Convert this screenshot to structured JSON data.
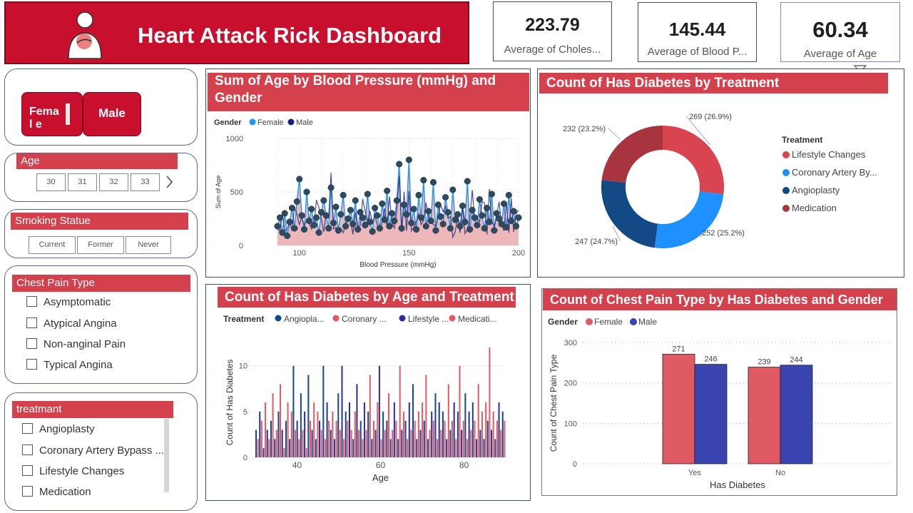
{
  "header": {
    "title": "Heart Attack Rick Dashboard",
    "logo_icon": "heart-attack-person-icon"
  },
  "kpis": [
    {
      "value": "223.79",
      "label": "Average of Choles..."
    },
    {
      "value": "145.44",
      "label": "Average of Blood P..."
    },
    {
      "value": "60.34",
      "label": "Average of Age"
    }
  ],
  "gender_slicer": {
    "options": [
      "Femal e",
      "Male"
    ]
  },
  "age_slicer": {
    "title": "Age",
    "options": [
      "30",
      "31",
      "32",
      "33"
    ]
  },
  "smoking_slicer": {
    "title": "Smoking Statue",
    "options": [
      "Current",
      "Former",
      "Never"
    ]
  },
  "chest_pain_slicer": {
    "title": "Chest Pain Type",
    "options": [
      "Asymptomatic",
      "Atypical Angina",
      "Non-anginal Pain",
      "Typical Angina"
    ]
  },
  "treatment_slicer": {
    "title": "treatmant",
    "options": [
      "Angioplasty",
      "Coronary Artery Bypass ...",
      "Lifestyle Changes",
      "Medication"
    ]
  },
  "colors": {
    "brand_red": "#c8102e",
    "title_red": "#d4414c",
    "female_blue": "#2196f3",
    "male_navy": "#1a237e",
    "bar_red": "#e05a64",
    "bar_blue": "#3a44b0",
    "donut_red": "#d84450",
    "donut_blue": "#1e90ff",
    "donut_navy": "#134a86",
    "donut_dark": "#a83440"
  },
  "chart_data": [
    {
      "type": "line",
      "title": "Sum of Age by Blood Pressure (mmHg) and Gender",
      "legend_title": "Gender",
      "series": [
        {
          "name": "Female"
        },
        {
          "name": "Male"
        }
      ],
      "xlabel": "Blood Pressure (mmHg)",
      "ylabel": "Sum of Age",
      "xticks": [
        "100",
        "150",
        "200"
      ],
      "yticks": [
        "0",
        "500",
        "1000"
      ],
      "xlim": [
        90,
        200
      ],
      "ylim": [
        0,
        1000
      ],
      "y_values": [
        180,
        260,
        120,
        300,
        90,
        220,
        350,
        160,
        410,
        620,
        280,
        150,
        500,
        230,
        340,
        190,
        260,
        120,
        310,
        420,
        280,
        160,
        540,
        210,
        360,
        140,
        290,
        470,
        180,
        250,
        330,
        200,
        420,
        150,
        310,
        260,
        190,
        480,
        220,
        130,
        350,
        280,
        160,
        390,
        240,
        510,
        180,
        300,
        230,
        420,
        760,
        160,
        380,
        290,
        800,
        210,
        340,
        150,
        470,
        260,
        610,
        180,
        320,
        230,
        590,
        140,
        380,
        270,
        200,
        450,
        310,
        160,
        520,
        240,
        290,
        180,
        370,
        220,
        600,
        150,
        330,
        260,
        190,
        430,
        280,
        160,
        350,
        220,
        480,
        140,
        300,
        250,
        200,
        390,
        170,
        470,
        230,
        320,
        180,
        260
      ]
    },
    {
      "type": "pie",
      "title": "Count of Has Diabetes by Treatment",
      "legend_title": "Treatment",
      "categories": [
        "Lifestyle Changes",
        "Coronary Artery By...",
        "Angioplasty",
        "Medication"
      ],
      "values": [
        269,
        252,
        247,
        232
      ],
      "labels": [
        "269 (26.9%)",
        "252 (25.2%)",
        "247 (24.7%)",
        "232 (23.2%)"
      ]
    },
    {
      "type": "bar",
      "title": "Count of Has Diabetes by Age and Treatment",
      "legend_title": "Treatment",
      "series": [
        {
          "name": "Angiopla..."
        },
        {
          "name": "Coronary ..."
        },
        {
          "name": "Lifestyle ..."
        },
        {
          "name": "Medicati..."
        }
      ],
      "xlabel": "Age",
      "ylabel": "Count of Has Diabetes",
      "xticks": [
        "40",
        "60",
        "80"
      ],
      "yticks": [
        "0",
        "5",
        "10"
      ],
      "xlim": [
        30,
        90
      ],
      "ylim": [
        0,
        12
      ],
      "values": [
        3,
        2,
        5,
        4,
        1,
        6,
        3,
        2,
        4,
        7,
        2,
        3,
        5,
        8,
        3,
        1,
        4,
        6,
        2,
        5,
        10,
        3,
        4,
        2,
        7,
        3,
        5,
        1,
        9,
        4,
        3,
        6,
        2,
        5,
        4,
        3,
        10,
        2,
        6,
        4,
        3,
        5,
        2,
        4,
        7,
        3,
        10,
        2,
        5,
        4,
        6,
        3,
        2,
        5,
        8,
        3,
        4,
        2,
        6,
        3,
        5,
        9,
        2,
        4,
        3,
        6,
        10,
        2,
        5,
        3,
        4,
        7,
        2,
        3,
        6,
        4,
        2,
        10,
        3,
        5,
        4,
        2,
        6,
        3,
        8,
        4,
        2,
        5,
        3,
        6,
        4,
        9,
        2,
        3,
        5,
        4,
        7,
        2,
        6,
        3,
        5,
        4,
        2,
        8,
        3,
        4,
        6,
        2,
        5,
        10,
        3,
        4,
        7,
        2,
        5,
        3,
        6,
        4,
        2,
        8,
        3,
        5,
        2,
        6,
        4,
        12,
        3,
        5,
        2,
        4,
        6,
        3,
        5,
        4
      ]
    },
    {
      "type": "bar",
      "title": "Count of Chest Pain Type by Has Diabetes and Gender",
      "legend_title": "Gender",
      "categories": [
        "Yes",
        "No"
      ],
      "series": [
        {
          "name": "Female",
          "values": [
            271,
            239
          ]
        },
        {
          "name": "Male",
          "values": [
            246,
            244
          ]
        }
      ],
      "xlabel": "Has Diabetes",
      "ylabel": "Count of Chest Pain Type",
      "yticks": [
        "0",
        "100",
        "200",
        "300"
      ],
      "ylim": [
        0,
        300
      ]
    }
  ]
}
